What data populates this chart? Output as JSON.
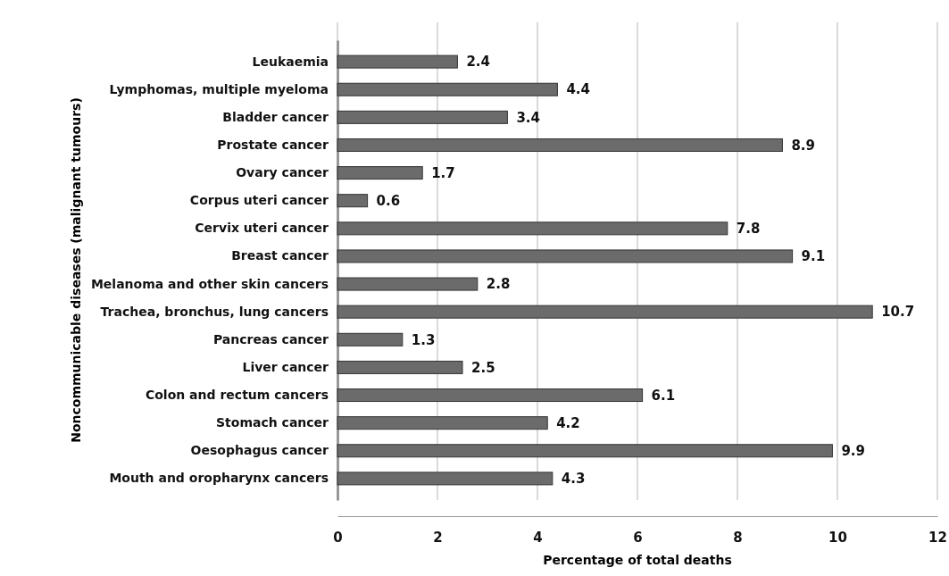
{
  "chart_data": {
    "type": "bar",
    "orientation": "horizontal",
    "xlabel": "Percentage of total deaths",
    "ylabel": "Noncommunicable diseases (malignant tumours)",
    "categories": [
      "Leukaemia",
      "Lymphomas, multiple myeloma",
      "Bladder cancer",
      "Prostate cancer",
      "Ovary cancer",
      "Corpus uteri cancer",
      "Cervix uteri cancer",
      "Breast cancer",
      "Melanoma and other skin cancers",
      "Trachea, bronchus, lung cancers",
      "Pancreas cancer",
      "Liver cancer",
      "Colon and rectum cancers",
      "Stomach cancer",
      "Oesophagus cancer",
      "Mouth and oropharynx cancers"
    ],
    "values": [
      2.4,
      4.4,
      3.4,
      8.9,
      1.7,
      0.6,
      7.8,
      9.1,
      2.8,
      10.7,
      1.3,
      2.5,
      6.1,
      4.2,
      9.9,
      4.3
    ],
    "color": "#6b6b6b",
    "xlim": [
      0,
      12
    ],
    "xticks": [
      0,
      2,
      4,
      6,
      8,
      10,
      12
    ],
    "grid": "x",
    "data_labels": true
  }
}
